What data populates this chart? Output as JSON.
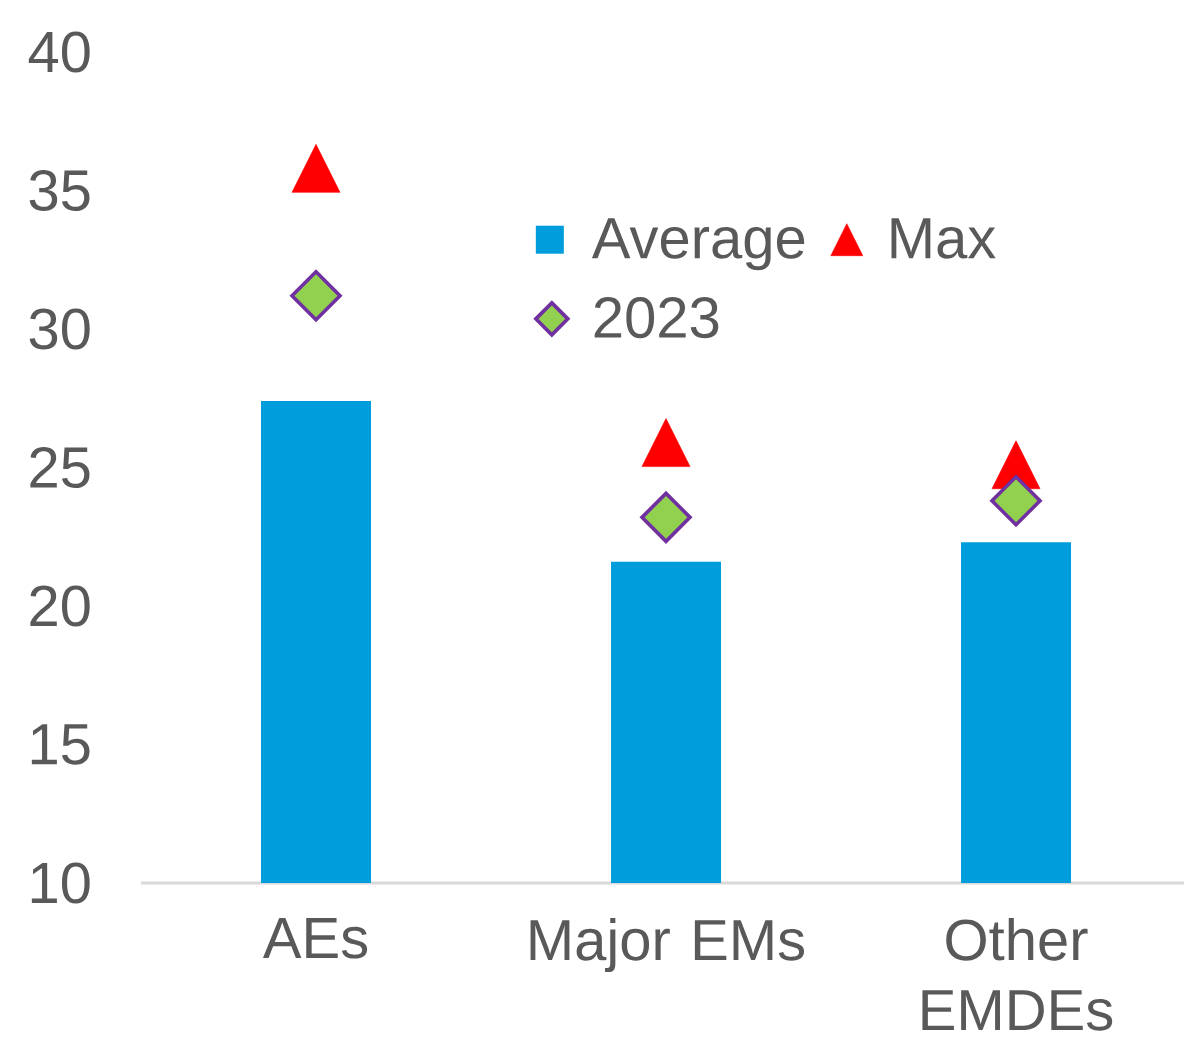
{
  "chart_data": {
    "type": "bar",
    "categories": [
      "AEs",
      "Major EMs",
      "Other EMDEs"
    ],
    "series": [
      {
        "name": "Average",
        "color": "#009ddc",
        "values": [
          27.4,
          21.6,
          22.3
        ]
      },
      {
        "name": "Max",
        "type": "scatter",
        "marker": "triangle",
        "color": "#ff0000",
        "values": [
          35.8,
          25.9,
          25.1
        ]
      },
      {
        "name": "2023",
        "type": "scatter",
        "marker": "diamond",
        "color": "#92d050",
        "values": [
          31.2,
          23.2,
          23.8
        ]
      }
    ],
    "ylim": [
      10,
      40
    ],
    "yticks": [
      10,
      15,
      20,
      25,
      30,
      35,
      40
    ],
    "legend": "top right"
  }
}
